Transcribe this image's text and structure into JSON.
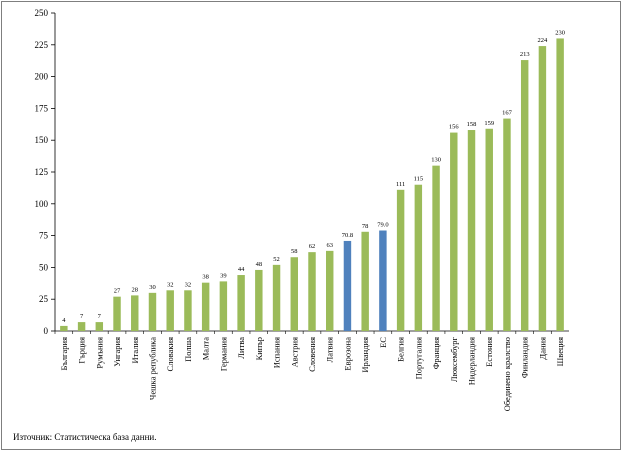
{
  "chart_data": {
    "type": "bar",
    "categories": [
      "България",
      "Гърция",
      "Румъния",
      "Унгария",
      "Италия",
      "Чешка република",
      "Словакия",
      "Полша",
      "Малта",
      "Германия",
      "Литва",
      "Кипър",
      "Испания",
      "Австрия",
      "Словения",
      "Латвия",
      "Еврозона",
      "Ирландия",
      "ЕС",
      "Белгия",
      "Португалия",
      "Франция",
      "Люксембург",
      "Нидерландия",
      "Естония",
      "Обединено кралство",
      "Финландия",
      "Дания",
      "Швеция"
    ],
    "values": [
      4,
      7,
      7,
      27,
      28,
      30,
      32,
      32,
      38,
      39,
      44,
      48,
      52,
      58,
      62,
      63,
      70.8,
      78,
      79.0,
      111,
      115,
      130,
      156,
      158,
      159,
      167,
      213,
      224,
      230
    ],
    "value_labels": [
      "4",
      "7",
      "7",
      "27",
      "28",
      "30",
      "32",
      "32",
      "38",
      "39",
      "44",
      "48",
      "52",
      "58",
      "62",
      "63",
      "70.8",
      "78",
      "79.0",
      "111",
      "115",
      "130",
      "156",
      "158",
      "159",
      "167",
      "213",
      "224",
      "230"
    ],
    "highlight": [
      "Еврозона",
      "ЕС"
    ],
    "colors": {
      "default": "#9bbb59",
      "highlight": "#4f81bd",
      "grid": "#000000"
    },
    "ylim": [
      0,
      250
    ],
    "yticks": [
      0,
      25,
      50,
      75,
      100,
      125,
      150,
      175,
      200,
      225,
      250
    ],
    "title": "",
    "xlabel": "",
    "ylabel": "",
    "grid": false,
    "legend": "none"
  },
  "source_note": "Източник: Статистическа база данни."
}
